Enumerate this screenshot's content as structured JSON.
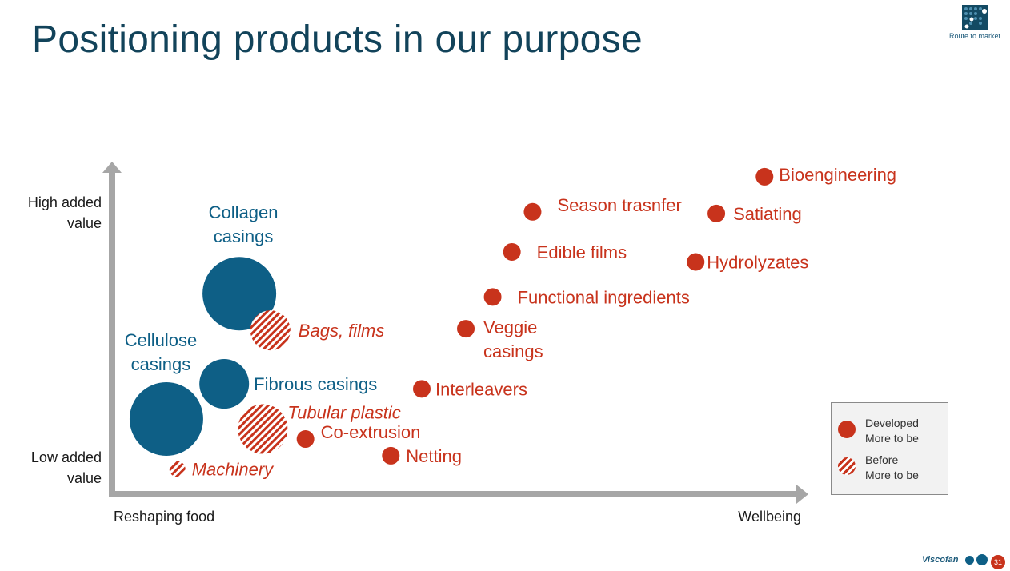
{
  "slide": {
    "title": "Positioning products in our purpose",
    "route_label": "Route to market",
    "logo_text": "Viscofan",
    "page_number": "31"
  },
  "colors": {
    "blue": "#0e5f86",
    "red": "#c8331c",
    "title": "#12435a",
    "axis": "#a6a6a6"
  },
  "chart_data": {
    "type": "scatter",
    "title": "",
    "xlabel_left": "Reshaping food",
    "xlabel_right": "Wellbeing",
    "ylabel_high": [
      "High added",
      "value"
    ],
    "ylabel_low": [
      "Low added",
      "value"
    ],
    "xlim": [
      0,
      100
    ],
    "ylim": [
      0,
      100
    ],
    "legend": [
      {
        "lines": [
          "Developed",
          "More to be"
        ],
        "style": "solid",
        "color": "#c8331c"
      },
      {
        "lines": [
          "Before",
          "More to be"
        ],
        "style": "hatched",
        "color": "#c8331c"
      }
    ],
    "points": [
      {
        "name": "collagen",
        "label": [
          "Collagen",
          "casings"
        ],
        "x": 18.5,
        "y": 60,
        "size": 46,
        "style": "solid",
        "color": "#0e5f86",
        "italic": false
      },
      {
        "name": "cellulose",
        "label": [
          "Cellulose",
          "casings"
        ],
        "x": 7.9,
        "y": 22.5,
        "size": 46,
        "style": "solid",
        "color": "#0e5f86",
        "italic": false
      },
      {
        "name": "fibrous",
        "label": [
          "Fibrous casings"
        ],
        "x": 16.3,
        "y": 33,
        "size": 31,
        "style": "solid",
        "color": "#0e5f86",
        "italic": false
      },
      {
        "name": "bags-films",
        "label": [
          "Bags, films"
        ],
        "x": 23,
        "y": 49,
        "size": 25,
        "style": "hatched",
        "color": "#c8331c",
        "italic": true
      },
      {
        "name": "tubular-plastic",
        "label": [
          "Tubular plastic"
        ],
        "x": 21.9,
        "y": 19.5,
        "size": 31,
        "style": "hatched",
        "color": "#c8331c",
        "italic": true
      },
      {
        "name": "machinery",
        "label": [
          "Machinery"
        ],
        "x": 9.5,
        "y": 7.5,
        "size": 10,
        "style": "hatched",
        "color": "#c8331c",
        "italic": true
      },
      {
        "name": "co-extrusion",
        "label": [
          "Co-extrusion"
        ],
        "x": 28.1,
        "y": 16.5,
        "size": 11,
        "style": "solid",
        "color": "#c8331c",
        "italic": false
      },
      {
        "name": "netting",
        "label": [
          "Netting"
        ],
        "x": 40.5,
        "y": 11.5,
        "size": 11,
        "style": "solid",
        "color": "#c8331c",
        "italic": false
      },
      {
        "name": "interleavers",
        "label": [
          "Interleavers"
        ],
        "x": 45,
        "y": 31.5,
        "size": 11,
        "style": "solid",
        "color": "#c8331c",
        "italic": false
      },
      {
        "name": "veggie-casings",
        "label": [
          "Veggie",
          "casings"
        ],
        "x": 51.4,
        "y": 49.5,
        "size": 11,
        "style": "solid",
        "color": "#c8331c",
        "italic": false
      },
      {
        "name": "functional-ingredients",
        "label": [
          "Functional ingredients"
        ],
        "x": 55.3,
        "y": 59,
        "size": 11,
        "style": "solid",
        "color": "#c8331c",
        "italic": false
      },
      {
        "name": "edible-films",
        "label": [
          "Edible films"
        ],
        "x": 58.1,
        "y": 72.5,
        "size": 11,
        "style": "solid",
        "color": "#c8331c",
        "italic": false
      },
      {
        "name": "season-transfer",
        "label": [
          "Season trasnfer"
        ],
        "x": 61.1,
        "y": 84.5,
        "size": 11,
        "style": "solid",
        "color": "#c8331c",
        "italic": false
      },
      {
        "name": "hydrolyzates",
        "label": [
          "Hydrolyzates"
        ],
        "x": 84.8,
        "y": 69.5,
        "size": 11,
        "style": "solid",
        "color": "#c8331c",
        "italic": false
      },
      {
        "name": "satiating",
        "label": [
          "Satiating"
        ],
        "x": 87.8,
        "y": 84,
        "size": 11,
        "style": "solid",
        "color": "#c8331c",
        "italic": false
      },
      {
        "name": "bioengineering",
        "label": [
          "Bioengineering"
        ],
        "x": 94.8,
        "y": 95,
        "size": 11,
        "style": "solid",
        "color": "#c8331c",
        "italic": false
      }
    ]
  }
}
